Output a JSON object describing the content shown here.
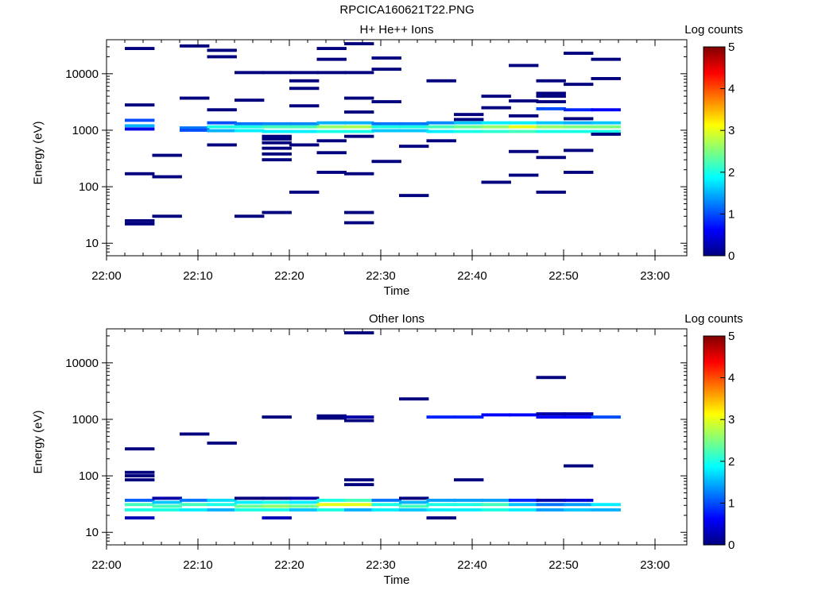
{
  "figure_title": "RPCICA160621T22.PNG",
  "colorscale": [
    "#00007f",
    "#0000ff",
    "#007fff",
    "#00ffff",
    "#7fff7f",
    "#ffff00",
    "#ff7f00",
    "#ff0000",
    "#7f0000"
  ],
  "chart_data": [
    {
      "type": "heatmap",
      "title": "H+ He++ Ions",
      "xlabel": "Time",
      "ylabel": "Energy (eV)",
      "y_scale": "log",
      "ylim": [
        6,
        40000
      ],
      "x_ticks": [
        "22:00",
        "22:10",
        "22:20",
        "22:30",
        "22:40",
        "22:50",
        "23:00"
      ],
      "y_ticks": [
        "10",
        "100",
        "1000",
        "10000"
      ],
      "colorbar": {
        "label": "Log counts",
        "range": [
          0,
          5
        ],
        "ticks": [
          "0",
          "1",
          "2",
          "3",
          "4",
          "5"
        ]
      },
      "columns": [
        {
          "t": 2,
          "cells": [
            [
              28000,
              0
            ],
            [
              2800,
              0
            ],
            [
              1500,
              1
            ],
            [
              1200,
              1.5
            ],
            [
              1050,
              0.5
            ],
            [
              170,
              0
            ],
            [
              25,
              0
            ],
            [
              22,
              0
            ]
          ]
        },
        {
          "t": 5,
          "cells": [
            [
              360,
              0
            ],
            [
              150,
              0
            ],
            [
              30,
              0
            ]
          ]
        },
        {
          "t": 8,
          "cells": [
            [
              31000,
              0
            ],
            [
              3700,
              0
            ],
            [
              1100,
              1.2
            ],
            [
              1000,
              1
            ]
          ]
        },
        {
          "t": 11,
          "cells": [
            [
              26000,
              0
            ],
            [
              20000,
              0
            ],
            [
              2300,
              0
            ],
            [
              1350,
              1
            ],
            [
              1150,
              2
            ],
            [
              980,
              1.5
            ],
            [
              550,
              0
            ]
          ]
        },
        {
          "t": 14,
          "cells": [
            [
              10500,
              0
            ],
            [
              3400,
              0
            ],
            [
              1300,
              1.2
            ],
            [
              1150,
              2
            ],
            [
              980,
              1.8
            ],
            [
              30,
              0
            ]
          ]
        },
        {
          "t": 17,
          "cells": [
            [
              10500,
              0
            ],
            [
              1300,
              1.3
            ],
            [
              1150,
              2.2
            ],
            [
              950,
              1.8
            ],
            [
              780,
              0
            ],
            [
              700,
              0
            ],
            [
              600,
              0
            ],
            [
              480,
              0
            ],
            [
              380,
              0
            ],
            [
              300,
              0
            ],
            [
              35,
              0
            ]
          ]
        },
        {
          "t": 20,
          "cells": [
            [
              10500,
              0
            ],
            [
              7500,
              0
            ],
            [
              5500,
              0
            ],
            [
              2700,
              0
            ],
            [
              1300,
              1.3
            ],
            [
              1150,
              2.2
            ],
            [
              950,
              1.8
            ],
            [
              550,
              0
            ],
            [
              80,
              0
            ]
          ]
        },
        {
          "t": 23,
          "cells": [
            [
              28000,
              0
            ],
            [
              18000,
              0
            ],
            [
              10500,
              0
            ],
            [
              1350,
              1.5
            ],
            [
              1150,
              2.6
            ],
            [
              950,
              2
            ],
            [
              650,
              0
            ],
            [
              400,
              0
            ],
            [
              180,
              0
            ]
          ]
        },
        {
          "t": 26,
          "cells": [
            [
              34000,
              0
            ],
            [
              10500,
              0
            ],
            [
              3700,
              0
            ],
            [
              2100,
              0
            ],
            [
              1350,
              1.5
            ],
            [
              1150,
              2.7
            ],
            [
              950,
              2
            ],
            [
              780,
              0
            ],
            [
              170,
              0
            ],
            [
              35,
              0
            ],
            [
              23,
              0
            ]
          ]
        },
        {
          "t": 29,
          "cells": [
            [
              19000,
              0
            ],
            [
              12000,
              0
            ],
            [
              3200,
              0
            ],
            [
              1300,
              1.2
            ],
            [
              1150,
              2
            ],
            [
              980,
              1.6
            ],
            [
              280,
              0
            ]
          ]
        },
        {
          "t": 32,
          "cells": [
            [
              1300,
              1.2
            ],
            [
              1150,
              2
            ],
            [
              980,
              1.6
            ],
            [
              520,
              0
            ],
            [
              70,
              0
            ]
          ]
        },
        {
          "t": 35,
          "cells": [
            [
              7500,
              0
            ],
            [
              1350,
              1.3
            ],
            [
              1150,
              2.2
            ],
            [
              950,
              1.8
            ],
            [
              650,
              0
            ]
          ]
        },
        {
          "t": 38,
          "cells": [
            [
              1900,
              0
            ],
            [
              1550,
              0
            ],
            [
              1350,
              1.6
            ],
            [
              1150,
              2.4
            ],
            [
              950,
              2
            ]
          ]
        },
        {
          "t": 41,
          "cells": [
            [
              4000,
              0
            ],
            [
              2500,
              0
            ],
            [
              1350,
              1.8
            ],
            [
              1150,
              2.6
            ],
            [
              950,
              2.1
            ],
            [
              120,
              0
            ]
          ]
        },
        {
          "t": 44,
          "cells": [
            [
              14000,
              0
            ],
            [
              3300,
              0
            ],
            [
              1800,
              0
            ],
            [
              1350,
              1.8
            ],
            [
              1150,
              3
            ],
            [
              950,
              2.2
            ],
            [
              420,
              0
            ],
            [
              160,
              0
            ]
          ]
        },
        {
          "t": 47,
          "cells": [
            [
              7500,
              0
            ],
            [
              4500,
              0
            ],
            [
              4000,
              0
            ],
            [
              3200,
              0
            ],
            [
              2400,
              1
            ],
            [
              1350,
              1.6
            ],
            [
              1150,
              2.6
            ],
            [
              950,
              2
            ],
            [
              330,
              0
            ],
            [
              80,
              0
            ]
          ]
        },
        {
          "t": 50,
          "cells": [
            [
              23000,
              0
            ],
            [
              6500,
              0
            ],
            [
              2300,
              0.8
            ],
            [
              1600,
              0
            ],
            [
              1350,
              1.5
            ],
            [
              1150,
              2.5
            ],
            [
              950,
              2
            ],
            [
              440,
              0
            ],
            [
              180,
              0
            ]
          ]
        },
        {
          "t": 53,
          "cells": [
            [
              18000,
              0
            ],
            [
              8200,
              0
            ],
            [
              2300,
              0.6
            ],
            [
              1350,
              1.6
            ],
            [
              1150,
              2.5
            ],
            [
              950,
              2
            ],
            [
              850,
              0
            ]
          ]
        }
      ]
    },
    {
      "type": "heatmap",
      "title": "Other Ions",
      "xlabel": "Time",
      "ylabel": "Energy (eV)",
      "y_scale": "log",
      "ylim": [
        6,
        40000
      ],
      "x_ticks": [
        "22:00",
        "22:10",
        "22:20",
        "22:30",
        "22:40",
        "22:50",
        "23:00"
      ],
      "y_ticks": [
        "10",
        "100",
        "1000",
        "10000"
      ],
      "colorbar": {
        "label": "Log counts",
        "range": [
          0,
          5
        ],
        "ticks": [
          "0",
          "1",
          "2",
          "3",
          "4",
          "5"
        ]
      },
      "columns": [
        {
          "t": 2,
          "cells": [
            [
              300,
              0
            ],
            [
              115,
              0
            ],
            [
              100,
              0
            ],
            [
              85,
              0
            ],
            [
              37,
              1.1
            ],
            [
              31,
              2.2
            ],
            [
              25,
              2
            ],
            [
              18,
              0.3
            ]
          ]
        },
        {
          "t": 5,
          "cells": [
            [
              40,
              0.2
            ],
            [
              34,
              1.6
            ],
            [
              29,
              2.2
            ],
            [
              25,
              2
            ]
          ]
        },
        {
          "t": 8,
          "cells": [
            [
              550,
              0
            ],
            [
              37,
              1.2
            ],
            [
              31,
              2.2
            ],
            [
              25,
              1.8
            ]
          ]
        },
        {
          "t": 11,
          "cells": [
            [
              380,
              0
            ],
            [
              37,
              1.7
            ],
            [
              31,
              2
            ],
            [
              25,
              1.5
            ]
          ]
        },
        {
          "t": 14,
          "cells": [
            [
              40,
              0
            ],
            [
              34,
              1.8
            ],
            [
              29,
              2.4
            ],
            [
              25,
              2
            ]
          ]
        },
        {
          "t": 17,
          "cells": [
            [
              1100,
              0
            ],
            [
              40,
              0
            ],
            [
              34,
              2
            ],
            [
              29,
              2.6
            ],
            [
              25,
              2
            ],
            [
              18,
              0.3
            ]
          ]
        },
        {
          "t": 20,
          "cells": [
            [
              40,
              0.2
            ],
            [
              34,
              1.8
            ],
            [
              29,
              2.4
            ],
            [
              25,
              1.6
            ]
          ]
        },
        {
          "t": 23,
          "cells": [
            [
              1150,
              0
            ],
            [
              1050,
              0
            ],
            [
              37,
              2
            ],
            [
              31,
              3
            ],
            [
              25,
              2
            ]
          ]
        },
        {
          "t": 26,
          "cells": [
            [
              34000,
              0
            ],
            [
              1100,
              0.2
            ],
            [
              950,
              0
            ],
            [
              85,
              0
            ],
            [
              70,
              0
            ],
            [
              37,
              2.2
            ],
            [
              31,
              3
            ],
            [
              25,
              1.5
            ]
          ]
        },
        {
          "t": 29,
          "cells": [
            [
              37,
              1.2
            ],
            [
              31,
              2
            ],
            [
              25,
              1.8
            ]
          ]
        },
        {
          "t": 32,
          "cells": [
            [
              2300,
              0
            ],
            [
              40,
              0
            ],
            [
              34,
              1.5
            ],
            [
              29,
              2.2
            ],
            [
              25,
              1.6
            ]
          ]
        },
        {
          "t": 35,
          "cells": [
            [
              1100,
              0.8
            ],
            [
              37,
              1.4
            ],
            [
              31,
              2
            ],
            [
              25,
              1.8
            ],
            [
              18,
              0
            ]
          ]
        },
        {
          "t": 38,
          "cells": [
            [
              1100,
              0.8
            ],
            [
              85,
              0
            ],
            [
              37,
              1.4
            ],
            [
              31,
              2
            ],
            [
              25,
              1.8
            ]
          ]
        },
        {
          "t": 41,
          "cells": [
            [
              1200,
              0.6
            ],
            [
              37,
              1.4
            ],
            [
              31,
              2.2
            ],
            [
              25,
              2
            ]
          ]
        },
        {
          "t": 44,
          "cells": [
            [
              1200,
              0.6
            ],
            [
              37,
              0.8
            ],
            [
              31,
              1.6
            ],
            [
              25,
              1.8
            ]
          ]
        },
        {
          "t": 47,
          "cells": [
            [
              5500,
              0
            ],
            [
              1250,
              0.2
            ],
            [
              1100,
              0.6
            ],
            [
              37,
              0.2
            ],
            [
              31,
              1.2
            ],
            [
              25,
              1.4
            ]
          ]
        },
        {
          "t": 50,
          "cells": [
            [
              1250,
              0.2
            ],
            [
              1100,
              0.6
            ],
            [
              150,
              0
            ],
            [
              37,
              0.4
            ],
            [
              31,
              1.4
            ],
            [
              25,
              1.6
            ]
          ]
        },
        {
          "t": 53,
          "cells": [
            [
              1100,
              1
            ],
            [
              31,
              1.8
            ],
            [
              25,
              1.5
            ]
          ]
        }
      ]
    }
  ]
}
